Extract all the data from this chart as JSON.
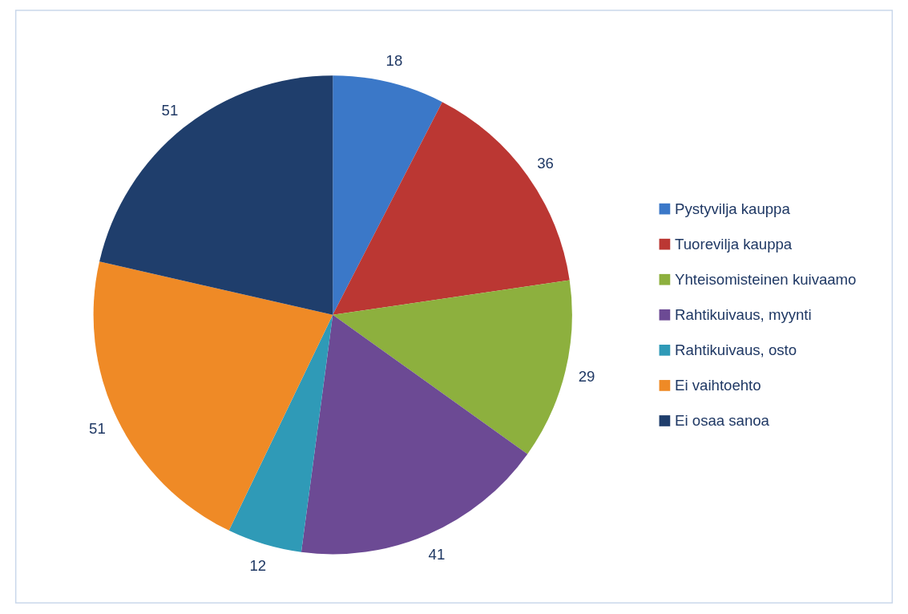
{
  "chart_data": {
    "type": "pie",
    "categories": [
      "Pystyvilja kauppa",
      "Tuorevilja kauppa",
      "Yhteisomisteinen kuivaamo",
      "Rahtikuivaus, myynti",
      "Rahtikuivaus, osto",
      "Ei vaihtoehto",
      "Ei osaa sanoa"
    ],
    "values": [
      18,
      36,
      29,
      41,
      12,
      51,
      51
    ],
    "colors": [
      "#3b78c8",
      "#bb3733",
      "#8db03e",
      "#6c4a94",
      "#2f9ab7",
      "#ef8a26",
      "#1f3e6c"
    ],
    "data_labels": true,
    "legend": "right"
  }
}
